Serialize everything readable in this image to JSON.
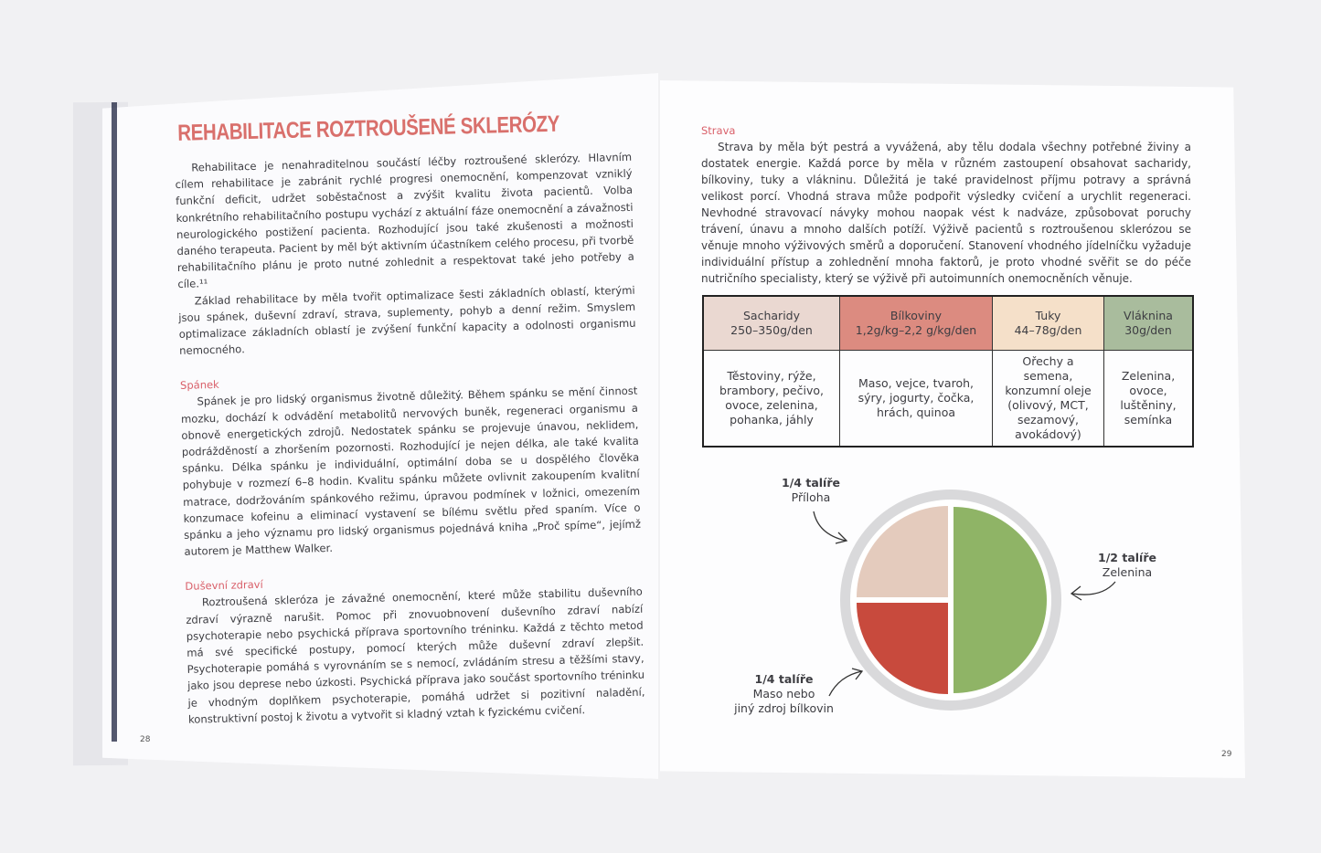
{
  "left_page": {
    "title": "REHABILITACE ROZTROUŠENÉ SKLERÓZY",
    "intro": [
      "Rehabilitace je nenahraditelnou součástí léčby roztroušené sklerózy. Hlavním cílem rehabilitace je zabránit rychlé progresi onemocnění, kompenzovat vzniklý funkční deficit, udržet soběstačnost a zvýšit kvalitu života pacientů. Volba konkrétního rehabilitačního postupu vychází z aktuální fáze onemocnění a závažnosti neurologického postižení pacienta. Rozhodující jsou také zkušenosti a možnosti daného terapeuta. Pacient by měl být aktivním účastníkem celého procesu, při tvorbě rehabilitačního plánu je proto nutné zohlednit a respektovat také jeho potřeby a cíle.¹¹",
      "Základ rehabilitace by měla tvořit optimalizace šesti základních oblastí, kterými jsou spánek, duševní zdraví, strava, suplementy, pohyb a denní režim. Smyslem optimalizace základních oblastí je zvýšení funkční kapacity a odolnosti organismu nemocného."
    ],
    "sections": [
      {
        "heading": "Spánek",
        "text": "Spánek je pro lidský organismus životně důležitý. Během spánku se mění činnost mozku, dochází k odvádění metabolitů nervových buněk, regeneraci organismu a obnově energetických zdrojů. Nedostatek spánku se projevuje únavou, neklidem, podrážděností a zhoršením pozornosti. Rozhodující je nejen délka, ale také kvalita spánku. Délka spánku je individuální, optimální doba se u dospělého člověka pohybuje v rozmezí 6–8 hodin. Kvalitu spánku můžete ovlivnit zakoupením kvalitní matrace, dodržováním spánkového režimu, úpravou podmínek v ložnici, omezením konzumace kofeinu a eliminací vystavení se bílému světlu před spaním. Více o spánku a jeho významu pro lidský organismus pojednává kniha „Proč spíme“, jejímž autorem je Matthew Walker."
      },
      {
        "heading": "Duševní zdraví",
        "text": "Roztroušená skleróza je závažné onemocnění, které může stabilitu duševního zdraví výrazně narušit. Pomoc při znovuobnovení duševního zdraví nabízí psychoterapie nebo psychická příprava sportovního tréninku. Každá z těchto metod má své specifické postupy, pomocí kterých může duševní zdraví zlepšit. Psychoterapie pomáhá s vyrovnáním se s nemocí, zvládáním stresu a těžšími stavy, jako jsou deprese nebo úzkosti. Psychická příprava jako součást sportovního tréninku je vhodným doplňkem psychoterapie, pomáhá udržet si pozitivní naladění, konstruktivní postoj k životu a vytvořit si kladný vztah k fyzickému cvičení."
      }
    ],
    "page_number": "28"
  },
  "right_page": {
    "heading": "Strava",
    "text": "Strava by měla být pestrá a vyvážená, aby tělu dodala všechny potřebné živiny a dostatek energie. Každá porce by měla v různém zastoupení obsahovat sacharidy, bílkoviny, tuky a vlákninu. Důležitá je také pravidelnost příjmu potravy a správná velikost porcí. Vhodná strava může podpořit výsledky cvičení a urychlit regeneraci. Nevhodné stravovací návyky mohou naopak vést k nadváze, způsobovat poruchy trávení, únavu a mnoho dalších potíží. Výživě pacientů s roztroušenou sklerózou se věnuje mnoho výživových směrů a doporučení. Stanovení vhodného jídelníčku vyžaduje individuální přístup a zohlednění mnoha faktorů, je proto vhodné svěřit se do péče nutričního specialisty, který se výživě při autoimunních onemocněních věnuje.",
    "table": {
      "columns": [
        {
          "name": "Sacharidy",
          "amount": "250–350g/den",
          "foods": "Těstoviny, rýže, brambory, pečivo, ovoce, zelenina, pohanka, jáhly",
          "color": "#ead8d1"
        },
        {
          "name": "Bílkoviny",
          "amount": "1,2g/kg–2,2 g/kg/den",
          "foods": "Maso, vejce, tvaroh, sýry, jogurty, čočka, hrách, quinoa",
          "color": "#dc8b80"
        },
        {
          "name": "Tuky",
          "amount": "44–78g/den",
          "foods": "Ořechy a semena, konzumní oleje (olivový, MCT, sezamový, avokádový)",
          "color": "#f5e0c9"
        },
        {
          "name": "Vláknina",
          "amount": "30g/den",
          "foods": "Zelenina, ovoce, luštěniny, semínka",
          "color": "#a9bc9d"
        }
      ]
    },
    "plate": {
      "segments": [
        {
          "fraction": "1/4 talíře",
          "label": "Příloha",
          "share": 0.25,
          "color": "#e4cbbd"
        },
        {
          "fraction": "1/2 talíře",
          "label": "Zelenina",
          "share": 0.5,
          "color": "#8fb466"
        },
        {
          "fraction": "1/4 talíře",
          "label_lines": [
            "Maso nebo",
            "jiný zdroj bílkovin"
          ],
          "share": 0.25,
          "color": "#c84a3d"
        }
      ]
    },
    "page_number": "29"
  }
}
